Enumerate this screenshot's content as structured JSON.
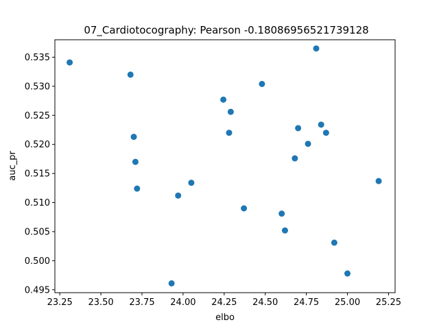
{
  "chart_data": {
    "type": "scatter",
    "title": "07_Cardiotocography: Pearson -0.18086956521739128",
    "xlabel": "elbo",
    "ylabel": "auc_pr",
    "xlim": [
      23.22,
      25.29
    ],
    "ylim": [
      0.4945,
      0.538
    ],
    "xticks": [
      23.25,
      23.5,
      23.75,
      24.0,
      24.25,
      24.5,
      24.75,
      25.0,
      25.25
    ],
    "xtick_labels": [
      "23.25",
      "23.50",
      "23.75",
      "24.00",
      "24.25",
      "24.50",
      "24.75",
      "25.00",
      "25.25"
    ],
    "yticks": [
      0.495,
      0.5,
      0.505,
      0.51,
      0.515,
      0.52,
      0.525,
      0.53,
      0.535
    ],
    "ytick_labels": [
      "0.495",
      "0.500",
      "0.505",
      "0.510",
      "0.515",
      "0.520",
      "0.525",
      "0.530",
      "0.535"
    ],
    "grid": false,
    "series": [
      {
        "color": "#1f77b4",
        "points": [
          {
            "x": 23.31,
            "y": 0.5341
          },
          {
            "x": 23.68,
            "y": 0.532
          },
          {
            "x": 23.7,
            "y": 0.5213
          },
          {
            "x": 23.71,
            "y": 0.517
          },
          {
            "x": 23.72,
            "y": 0.5124
          },
          {
            "x": 23.93,
            "y": 0.4961
          },
          {
            "x": 23.97,
            "y": 0.5112
          },
          {
            "x": 24.05,
            "y": 0.5134
          },
          {
            "x": 24.245,
            "y": 0.5277
          },
          {
            "x": 24.28,
            "y": 0.522
          },
          {
            "x": 24.29,
            "y": 0.5256
          },
          {
            "x": 24.37,
            "y": 0.509
          },
          {
            "x": 24.48,
            "y": 0.5304
          },
          {
            "x": 24.6,
            "y": 0.5081
          },
          {
            "x": 24.62,
            "y": 0.5052
          },
          {
            "x": 24.68,
            "y": 0.5176
          },
          {
            "x": 24.7,
            "y": 0.5228
          },
          {
            "x": 24.76,
            "y": 0.5201
          },
          {
            "x": 24.81,
            "y": 0.5365
          },
          {
            "x": 24.84,
            "y": 0.5234
          },
          {
            "x": 24.87,
            "y": 0.522
          },
          {
            "x": 24.92,
            "y": 0.5031
          },
          {
            "x": 25.0,
            "y": 0.4978
          },
          {
            "x": 25.19,
            "y": 0.5137
          }
        ]
      }
    ]
  }
}
